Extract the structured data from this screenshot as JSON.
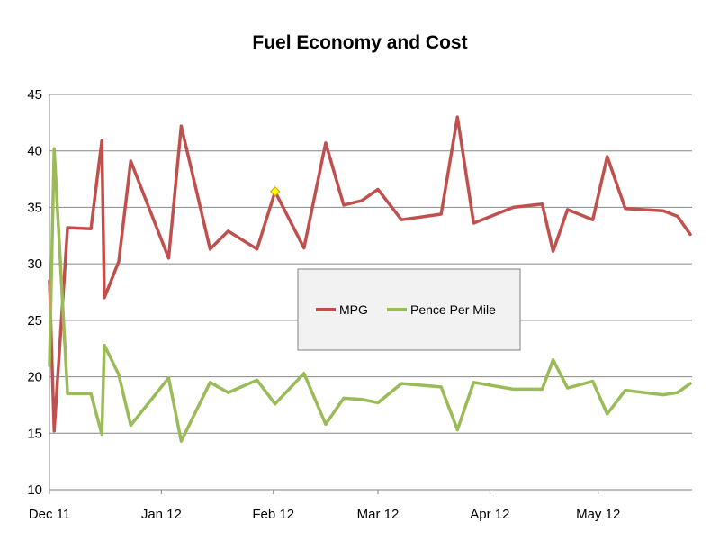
{
  "chart_data": {
    "type": "line",
    "title": "Fuel Economy and Cost",
    "xlabel": "",
    "ylabel": "",
    "ylim": [
      10,
      45
    ],
    "yticks": [
      10,
      15,
      20,
      25,
      30,
      35,
      40,
      45
    ],
    "xlim_days": [
      0,
      178
    ],
    "xticks": [
      {
        "label": "Dec 11",
        "day": 0
      },
      {
        "label": "Jan 12",
        "day": 31
      },
      {
        "label": "Feb 12",
        "day": 62
      },
      {
        "label": "Mar 12",
        "day": 91
      },
      {
        "label": "Apr 12",
        "day": 122
      },
      {
        "label": "May 12",
        "day": 152
      }
    ],
    "grid": "horizontal",
    "legend": "center",
    "series": [
      {
        "name": "MPG",
        "color": "#C0504D",
        "x": [
          0,
          1.3,
          5,
          11.5,
          14.5,
          15.2,
          19.2,
          22.5,
          33,
          36.5,
          44.5,
          49.5,
          57.5,
          62.5,
          70.5,
          76.5,
          81.5,
          86.5,
          91,
          97.5,
          108.5,
          113,
          117.5,
          128.5,
          136.5,
          139.5,
          143.5,
          150.5,
          154.5,
          159.5,
          170,
          174,
          177.5
        ],
        "values": [
          28.5,
          15.2,
          33.2,
          33.1,
          40.9,
          27.0,
          30.2,
          39.1,
          30.5,
          42.2,
          31.3,
          32.9,
          31.3,
          36.4,
          31.4,
          40.7,
          35.2,
          35.6,
          36.6,
          33.9,
          34.4,
          43.0,
          33.6,
          35.0,
          35.3,
          31.1,
          34.8,
          33.9,
          39.5,
          34.9,
          34.7,
          34.2,
          32.6
        ]
      },
      {
        "name": "Pence Per Mile",
        "color": "#9BBB59",
        "x": [
          0,
          1.3,
          5,
          11.5,
          14.5,
          15.2,
          19.2,
          22.5,
          33,
          36.5,
          44.5,
          49.5,
          57.5,
          62.5,
          70.5,
          76.5,
          81.5,
          86.5,
          91,
          97.5,
          108.5,
          113,
          117.5,
          128.5,
          136.5,
          139.5,
          143.5,
          150.5,
          154.5,
          159.5,
          170,
          174,
          177.5
        ],
        "values": [
          21.0,
          40.2,
          18.5,
          18.5,
          14.9,
          22.8,
          20.2,
          15.7,
          19.9,
          14.3,
          19.5,
          18.6,
          19.7,
          17.6,
          20.3,
          15.8,
          18.1,
          18.0,
          17.7,
          19.4,
          19.1,
          15.3,
          19.5,
          18.9,
          18.9,
          21.5,
          19.0,
          19.6,
          16.7,
          18.8,
          18.4,
          18.6,
          19.4
        ]
      }
    ],
    "highlight": {
      "series": "MPG",
      "x": 62.5,
      "value": 36.4,
      "color": "#FFFF00"
    }
  }
}
